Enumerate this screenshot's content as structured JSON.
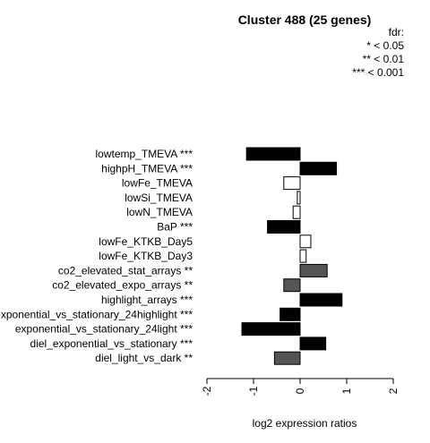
{
  "chart_data": {
    "type": "bar",
    "orientation": "horizontal",
    "title": "Cluster 488 (25 genes)",
    "xlabel": "log2 expression ratios",
    "ylabel": "",
    "xlim": [
      -2,
      2
    ],
    "x_ticks": [
      "-2",
      "-1",
      "0",
      "1",
      "2"
    ],
    "legend_title": "fdr:",
    "legend_entries": [
      "* < 0.05",
      "** < 0.01",
      "*** < 0.001"
    ],
    "categories": [
      "lowtemp_TMEVA ***",
      "highpH_TMEVA ***",
      "lowFe_TMEVA",
      "lowSi_TMEVA",
      "lowN_TMEVA",
      "BaP ***",
      "lowFe_KTKB_Day5",
      "lowFe_KTKB_Day3",
      "co2_elevated_stat_arrays **",
      "co2_elevated_expo_arrays **",
      "highlight_arrays ***",
      "exponential_vs_stationary_24highlight ***",
      "exponential_vs_stationary_24light ***",
      "diel_exponential_vs_stationary ***",
      "diel_light_vs_dark **"
    ],
    "values": [
      -1.15,
      0.78,
      -0.35,
      -0.06,
      -0.15,
      -0.7,
      0.23,
      0.13,
      0.58,
      -0.35,
      0.9,
      -0.43,
      -1.25,
      0.55,
      -0.55
    ],
    "fill_colors": [
      "#000000",
      "#000000",
      "#ffffff",
      "#ffffff",
      "#ffffff",
      "#000000",
      "#ffffff",
      "#ffffff",
      "#555555",
      "#555555",
      "#000000",
      "#000000",
      "#000000",
      "#000000",
      "#555555"
    ]
  }
}
